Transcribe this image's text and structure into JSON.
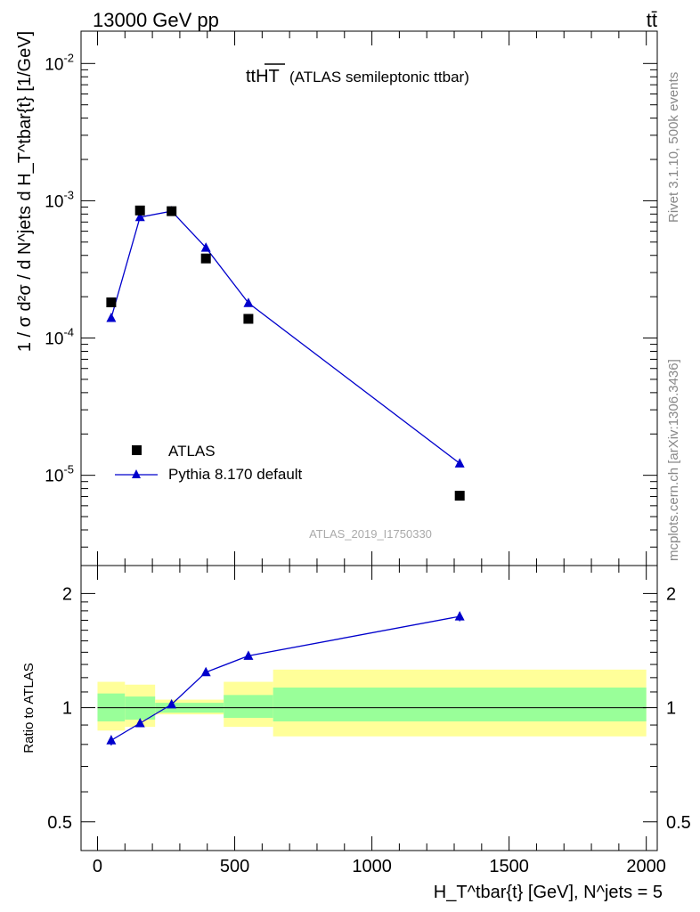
{
  "header": {
    "energy": "13000 GeV pp",
    "process": "tt̄"
  },
  "side_labels": {
    "rivet": "Rivet 3.1.10,  500k events",
    "mcplots": "mcplots.cern.ch [arXiv:1306.3436]"
  },
  "chart_data": [
    {
      "type": "scatter",
      "title_main": "ttHT",
      "title_sub": "(ATLAS semileptonic ttbar)",
      "watermark": "ATLAS_2019_I1750330",
      "ylabel": "1 / σ d²σ / d N^jets d H_T^tbar{t} [1/GeV]",
      "y_scale": "log",
      "ylim": [
        2.2e-06,
        0.0172
      ],
      "xlim": [
        -60,
        2040
      ],
      "y_ticks": [
        {
          "label_base": "10",
          "label_exp": "-5",
          "value": 1e-05
        },
        {
          "label_base": "10",
          "label_exp": "-4",
          "value": 0.0001
        },
        {
          "label_base": "10",
          "label_exp": "-3",
          "value": 0.001
        },
        {
          "label_base": "10",
          "label_exp": "-2",
          "value": 0.01
        }
      ],
      "legend_position": "bottom-left",
      "series": [
        {
          "name": "ATLAS",
          "style": "square-marker",
          "color": "#000000",
          "x": [
            50,
            155,
            270,
            395,
            550,
            1320
          ],
          "y": [
            0.000182,
            0.00085,
            0.00084,
            0.00038,
            0.000138,
            7.1e-06
          ]
        },
        {
          "name": "Pythia 8.170 default",
          "style": "line-triangle",
          "color": "#0000cc",
          "x": [
            50,
            155,
            270,
            395,
            550,
            1320
          ],
          "y": [
            0.00014,
            0.00076,
            0.00084,
            0.000455,
            0.00018,
            1.22e-05
          ]
        }
      ]
    },
    {
      "type": "line",
      "ylabel": "Ratio to ATLAS",
      "xlabel": "H_T^tbar{t} [GeV], N^jets = 5",
      "y_scale": "log",
      "ylim": [
        0.42,
        2.37
      ],
      "xlim": [
        -60,
        2040
      ],
      "x_ticks": [
        0,
        500,
        1000,
        1500,
        2000
      ],
      "y_ticks": [
        0.5,
        1,
        2
      ],
      "reference_line": 1,
      "uncertainty_bands": [
        {
          "x0": 0,
          "x1": 100,
          "green": [
            0.92,
            1.09
          ],
          "yellow": [
            0.87,
            1.17
          ]
        },
        {
          "x0": 100,
          "x1": 210,
          "green": [
            0.93,
            1.07
          ],
          "yellow": [
            0.89,
            1.15
          ]
        },
        {
          "x0": 210,
          "x1": 460,
          "green": [
            0.97,
            1.03
          ],
          "yellow": [
            0.96,
            1.05
          ]
        },
        {
          "x0": 460,
          "x1": 640,
          "green": [
            0.94,
            1.08
          ],
          "yellow": [
            0.89,
            1.17
          ]
        },
        {
          "x0": 640,
          "x1": 2000,
          "green": [
            0.92,
            1.13
          ],
          "yellow": [
            0.84,
            1.26
          ]
        }
      ],
      "series": [
        {
          "name": "Pythia 8.170 default",
          "color": "#0000cc",
          "x": [
            50,
            155,
            270,
            395,
            550,
            1320
          ],
          "y": [
            0.82,
            0.91,
            1.02,
            1.24,
            1.37,
            1.74
          ],
          "err": [
            0.025,
            0.01,
            0.01,
            0.015,
            0.015,
            0.05
          ]
        }
      ]
    }
  ]
}
